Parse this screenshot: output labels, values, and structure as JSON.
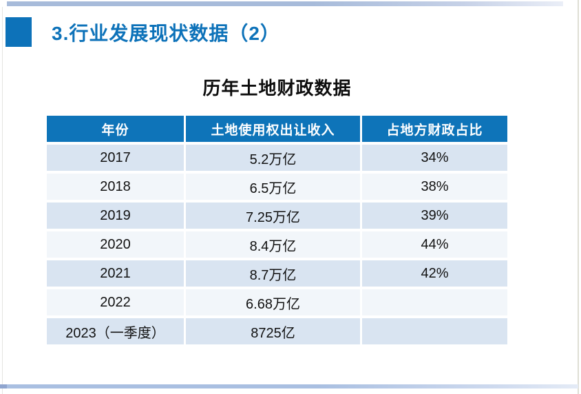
{
  "header": {
    "title": "3.行业发展现状数据（2）"
  },
  "main": {
    "table_title": "历年土地财政数据"
  },
  "table": {
    "columns": [
      "年份",
      "土地使用权出让收入",
      "占地方财政占比"
    ],
    "rows": [
      [
        "2017",
        "5.2万亿",
        "34%"
      ],
      [
        "2018",
        "6.5万亿",
        "38%"
      ],
      [
        "2019",
        "7.25万亿",
        "39%"
      ],
      [
        "2020",
        "8.4万亿",
        "44%"
      ],
      [
        "2021",
        "8.7万亿",
        "42%"
      ],
      [
        "2022",
        "6.68万亿",
        ""
      ],
      [
        "2023（一季度）",
        "8725亿",
        ""
      ]
    ]
  },
  "colors": {
    "accent_blue": "#0d72b9",
    "table_header_bg": "#0e74b9",
    "table_header_text": "#ffffff",
    "row_light_blue": "#d9e4f1",
    "row_near_white": "#f2f6fa",
    "body_text": "#111111",
    "top_bar_blue": "#a7bbda",
    "bottom_bar_blue": "#a9bfe1"
  },
  "chart_data": {
    "type": "table",
    "title": "历年土地财政数据",
    "columns": [
      "年份",
      "土地使用权出让收入",
      "占地方财政占比"
    ],
    "rows": [
      [
        "2017",
        "5.2万亿",
        "34%"
      ],
      [
        "2018",
        "6.5万亿",
        "38%"
      ],
      [
        "2019",
        "7.25万亿",
        "39%"
      ],
      [
        "2020",
        "8.4万亿",
        "44%"
      ],
      [
        "2021",
        "8.7万亿",
        "42%"
      ],
      [
        "2022",
        "6.68万亿",
        ""
      ],
      [
        "2023（一季度）",
        "8725亿",
        ""
      ]
    ]
  }
}
